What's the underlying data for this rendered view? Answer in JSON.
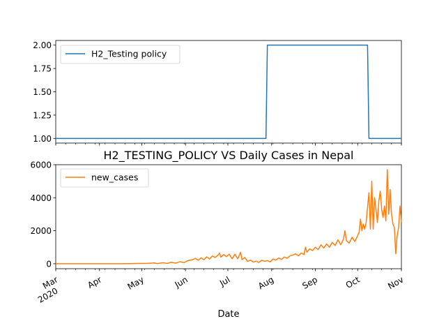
{
  "chart_data": [
    {
      "type": "line",
      "title": "",
      "xlabel": "",
      "ylabel": "",
      "x_range": [
        "2020-03-01",
        "2020-11-01"
      ],
      "ylim": [
        0.95,
        2.05
      ],
      "y_ticks": [
        "1.00",
        "1.25",
        "1.50",
        "1.75",
        "2.00"
      ],
      "grid": false,
      "legend_position": "top-left",
      "series": [
        {
          "name": "H2_Testing policy",
          "color": "#1f77b4",
          "points": [
            [
              "2020-03-01",
              1
            ],
            [
              "2020-07-28",
              1
            ],
            [
              "2020-07-29",
              2
            ],
            [
              "2020-10-08",
              2
            ],
            [
              "2020-10-09",
              1
            ],
            [
              "2020-11-01",
              1
            ]
          ]
        }
      ]
    },
    {
      "type": "line",
      "title": "H2_TESTING_POLICY VS Daily Cases in Nepal",
      "xlabel": "Date",
      "ylabel": "",
      "x_range": [
        "2020-03-01",
        "2020-11-01"
      ],
      "ylim": [
        -300,
        6000
      ],
      "y_ticks": [
        "0",
        "2000",
        "4000",
        "6000"
      ],
      "x_ticks": [
        {
          "date": "2020-03-01",
          "label": "Mar",
          "label2": "2020"
        },
        {
          "date": "2020-04-01",
          "label": "Apr"
        },
        {
          "date": "2020-05-01",
          "label": "May"
        },
        {
          "date": "2020-06-01",
          "label": "Jun"
        },
        {
          "date": "2020-07-01",
          "label": "Jul"
        },
        {
          "date": "2020-08-01",
          "label": "Aug"
        },
        {
          "date": "2020-09-01",
          "label": "Sep"
        },
        {
          "date": "2020-10-01",
          "label": "Oct"
        },
        {
          "date": "2020-11-01",
          "label": "Nov"
        }
      ],
      "grid": false,
      "legend_position": "top-left",
      "series": [
        {
          "name": "new_cases",
          "color": "#ff7f0e",
          "points": [
            [
              "2020-03-01",
              0
            ],
            [
              "2020-04-15",
              0
            ],
            [
              "2020-04-25",
              10
            ],
            [
              "2020-05-05",
              20
            ],
            [
              "2020-05-10",
              50
            ],
            [
              "2020-05-12",
              10
            ],
            [
              "2020-05-16",
              60
            ],
            [
              "2020-05-19",
              20
            ],
            [
              "2020-05-22",
              90
            ],
            [
              "2020-05-25",
              40
            ],
            [
              "2020-05-28",
              120
            ],
            [
              "2020-05-31",
              70
            ],
            [
              "2020-06-03",
              200
            ],
            [
              "2020-06-06",
              240
            ],
            [
              "2020-06-08",
              330
            ],
            [
              "2020-06-10",
              210
            ],
            [
              "2020-06-12",
              360
            ],
            [
              "2020-06-14",
              240
            ],
            [
              "2020-06-16",
              420
            ],
            [
              "2020-06-18",
              290
            ],
            [
              "2020-06-20",
              470
            ],
            [
              "2020-06-22",
              380
            ],
            [
              "2020-06-24",
              520
            ],
            [
              "2020-06-25",
              650
            ],
            [
              "2020-06-26",
              400
            ],
            [
              "2020-06-28",
              560
            ],
            [
              "2020-06-30",
              430
            ],
            [
              "2020-07-02",
              580
            ],
            [
              "2020-07-04",
              300
            ],
            [
              "2020-07-06",
              580
            ],
            [
              "2020-07-08",
              300
            ],
            [
              "2020-07-10",
              700
            ],
            [
              "2020-07-11",
              250
            ],
            [
              "2020-07-13",
              380
            ],
            [
              "2020-07-15",
              140
            ],
            [
              "2020-07-17",
              220
            ],
            [
              "2020-07-19",
              100
            ],
            [
              "2020-07-21",
              160
            ],
            [
              "2020-07-23",
              80
            ],
            [
              "2020-07-25",
              210
            ],
            [
              "2020-07-27",
              150
            ],
            [
              "2020-07-29",
              190
            ],
            [
              "2020-07-31",
              110
            ],
            [
              "2020-08-02",
              290
            ],
            [
              "2020-08-04",
              220
            ],
            [
              "2020-08-06",
              350
            ],
            [
              "2020-08-08",
              260
            ],
            [
              "2020-08-10",
              410
            ],
            [
              "2020-08-12",
              330
            ],
            [
              "2020-08-14",
              480
            ],
            [
              "2020-08-16",
              520
            ],
            [
              "2020-08-18",
              600
            ],
            [
              "2020-08-20",
              480
            ],
            [
              "2020-08-22",
              650
            ],
            [
              "2020-08-24",
              560
            ],
            [
              "2020-08-25",
              1000
            ],
            [
              "2020-08-26",
              700
            ],
            [
              "2020-08-28",
              900
            ],
            [
              "2020-08-30",
              800
            ],
            [
              "2020-09-01",
              1000
            ],
            [
              "2020-09-03",
              860
            ],
            [
              "2020-09-05",
              1150
            ],
            [
              "2020-09-07",
              950
            ],
            [
              "2020-09-09",
              1200
            ],
            [
              "2020-09-11",
              1000
            ],
            [
              "2020-09-13",
              1300
            ],
            [
              "2020-09-15",
              1100
            ],
            [
              "2020-09-17",
              1450
            ],
            [
              "2020-09-19",
              1150
            ],
            [
              "2020-09-21",
              1500
            ],
            [
              "2020-09-22",
              2000
            ],
            [
              "2020-09-23",
              1400
            ],
            [
              "2020-09-25",
              1250
            ],
            [
              "2020-09-27",
              1600
            ],
            [
              "2020-09-29",
              1350
            ],
            [
              "2020-10-01",
              1700
            ],
            [
              "2020-10-02",
              1900
            ],
            [
              "2020-10-03",
              2700
            ],
            [
              "2020-10-04",
              2000
            ],
            [
              "2020-10-05",
              2400
            ],
            [
              "2020-10-06",
              2100
            ],
            [
              "2020-10-07",
              2500
            ],
            [
              "2020-10-08",
              3400
            ],
            [
              "2020-10-09",
              4300
            ],
            [
              "2020-10-10",
              2100
            ],
            [
              "2020-10-11",
              5000
            ],
            [
              "2020-10-12",
              2100
            ],
            [
              "2020-10-13",
              4000
            ],
            [
              "2020-10-14",
              3300
            ],
            [
              "2020-10-15",
              2500
            ],
            [
              "2020-10-16",
              3800
            ],
            [
              "2020-10-17",
              4400
            ],
            [
              "2020-10-18",
              3300
            ],
            [
              "2020-10-19",
              2800
            ],
            [
              "2020-10-20",
              3500
            ],
            [
              "2020-10-21",
              2600
            ],
            [
              "2020-10-22",
              5700
            ],
            [
              "2020-10-23",
              3000
            ],
            [
              "2020-10-24",
              4500
            ],
            [
              "2020-10-25",
              3000
            ],
            [
              "2020-10-26",
              2400
            ],
            [
              "2020-10-27",
              2200
            ],
            [
              "2020-10-28",
              600
            ],
            [
              "2020-10-29",
              1700
            ],
            [
              "2020-10-30",
              2200
            ],
            [
              "2020-10-31",
              3500
            ],
            [
              "2020-11-01",
              2500
            ]
          ]
        }
      ]
    }
  ]
}
